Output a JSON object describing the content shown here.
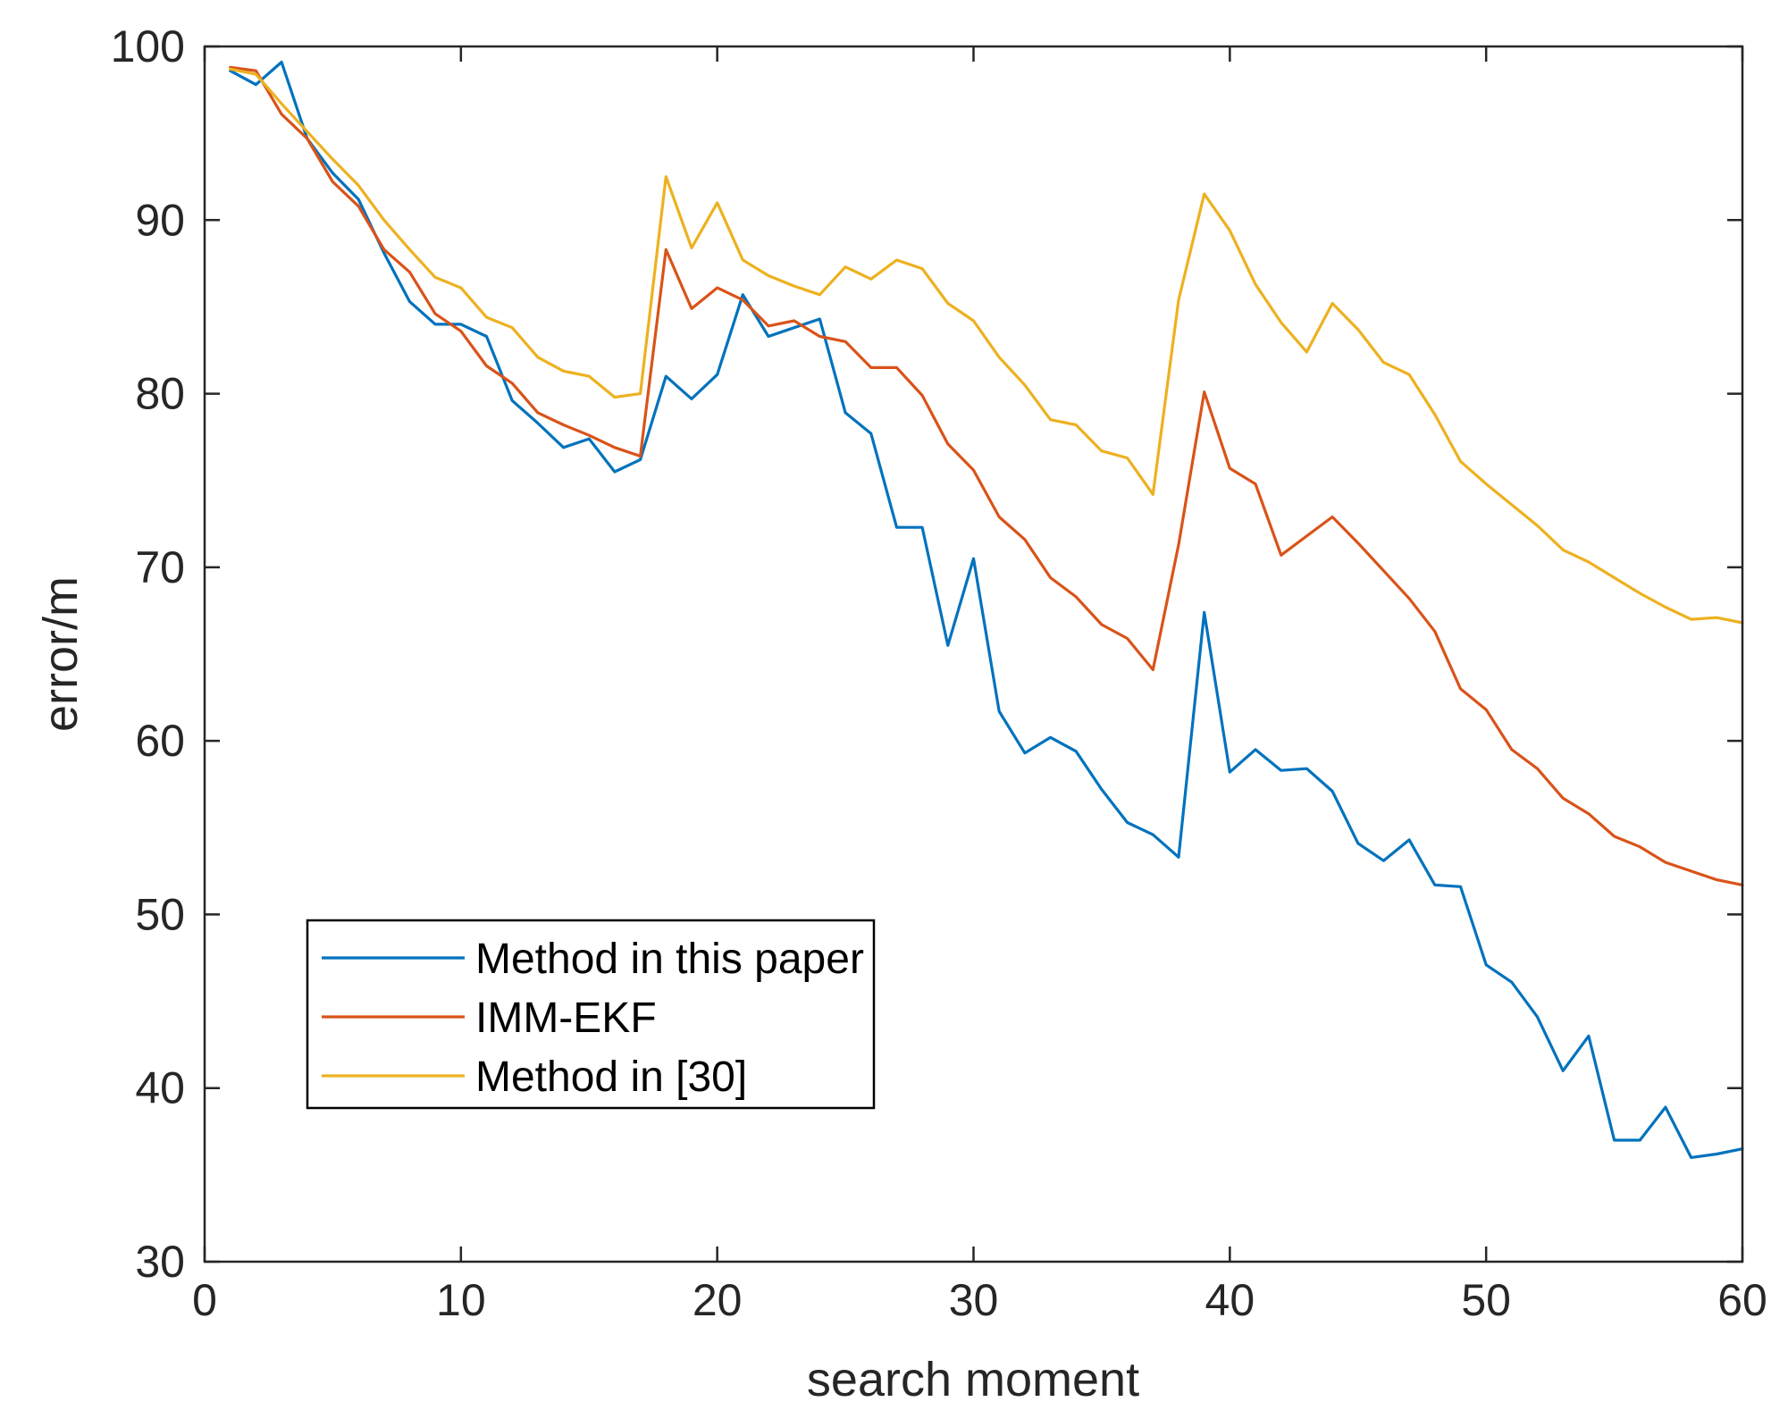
{
  "chart_data": {
    "type": "line",
    "xlabel": "search moment",
    "ylabel": "error/m",
    "xlim": [
      0,
      60
    ],
    "ylim": [
      30,
      100
    ],
    "xticks": [
      0,
      10,
      20,
      30,
      40,
      50,
      60
    ],
    "yticks": [
      30,
      40,
      50,
      60,
      70,
      80,
      90,
      100
    ],
    "grid": false,
    "legend_position": "lower-left",
    "x": [
      1,
      2,
      3,
      4,
      5,
      6,
      7,
      8,
      9,
      10,
      11,
      12,
      13,
      14,
      15,
      16,
      17,
      18,
      19,
      20,
      21,
      22,
      23,
      24,
      25,
      26,
      27,
      28,
      29,
      30,
      31,
      32,
      33,
      34,
      35,
      36,
      37,
      38,
      39,
      40,
      41,
      42,
      43,
      44,
      45,
      46,
      47,
      48,
      49,
      50,
      51,
      52,
      53,
      54,
      55,
      56,
      57,
      58,
      59,
      60
    ],
    "series": [
      {
        "name": "Method in this paper",
        "color": "#0072BD",
        "values": [
          98.6,
          97.8,
          99.1,
          94.7,
          92.7,
          91.2,
          88.1,
          85.3,
          84.0,
          84.0,
          83.3,
          79.6,
          78.3,
          76.9,
          77.4,
          75.5,
          76.2,
          81.0,
          79.7,
          81.1,
          85.7,
          83.3,
          83.8,
          84.3,
          78.9,
          77.7,
          72.3,
          72.3,
          65.5,
          70.5,
          61.7,
          59.3,
          60.2,
          59.4,
          57.2,
          55.3,
          54.6,
          53.3,
          67.4,
          58.2,
          59.5,
          58.3,
          58.4,
          57.1,
          54.1,
          53.1,
          54.3,
          51.7,
          51.6,
          47.1,
          46.1,
          44.1,
          41.0,
          43.0,
          37.0,
          37.0,
          38.9,
          36.0,
          36.2,
          36.5
        ]
      },
      {
        "name": "IMM-EKF",
        "color": "#D95319",
        "values": [
          98.8,
          98.6,
          96.1,
          94.7,
          92.2,
          90.8,
          88.3,
          87.0,
          84.6,
          83.6,
          81.6,
          80.6,
          78.9,
          78.2,
          77.6,
          76.9,
          76.4,
          88.3,
          84.9,
          86.1,
          85.4,
          83.9,
          84.2,
          83.3,
          83.0,
          81.5,
          81.5,
          79.9,
          77.1,
          75.6,
          72.9,
          71.6,
          69.4,
          68.3,
          66.7,
          65.9,
          64.1,
          71.3,
          80.1,
          75.7,
          74.8,
          70.7,
          71.8,
          72.9,
          71.4,
          69.8,
          68.2,
          66.3,
          63.0,
          61.8,
          59.5,
          58.4,
          56.7,
          55.8,
          54.5,
          53.9,
          53.0,
          52.5,
          52.0,
          51.7
        ]
      },
      {
        "name": "Method in [30]",
        "color": "#EDB120",
        "values": [
          98.7,
          98.4,
          96.7,
          95.1,
          93.5,
          92.0,
          90.0,
          88.3,
          86.7,
          86.1,
          84.4,
          83.8,
          82.1,
          81.3,
          81.0,
          79.8,
          80.0,
          92.5,
          88.4,
          91.0,
          87.7,
          86.8,
          86.2,
          85.7,
          87.3,
          86.6,
          87.7,
          87.2,
          85.2,
          84.2,
          82.1,
          80.5,
          78.5,
          78.2,
          76.7,
          76.3,
          74.2,
          85.4,
          91.5,
          89.4,
          86.3,
          84.1,
          82.4,
          85.2,
          83.7,
          81.8,
          81.1,
          78.8,
          76.1,
          74.8,
          73.6,
          72.4,
          71.0,
          70.3,
          69.4,
          68.5,
          67.7,
          67.0,
          67.1,
          66.8
        ]
      }
    ]
  }
}
